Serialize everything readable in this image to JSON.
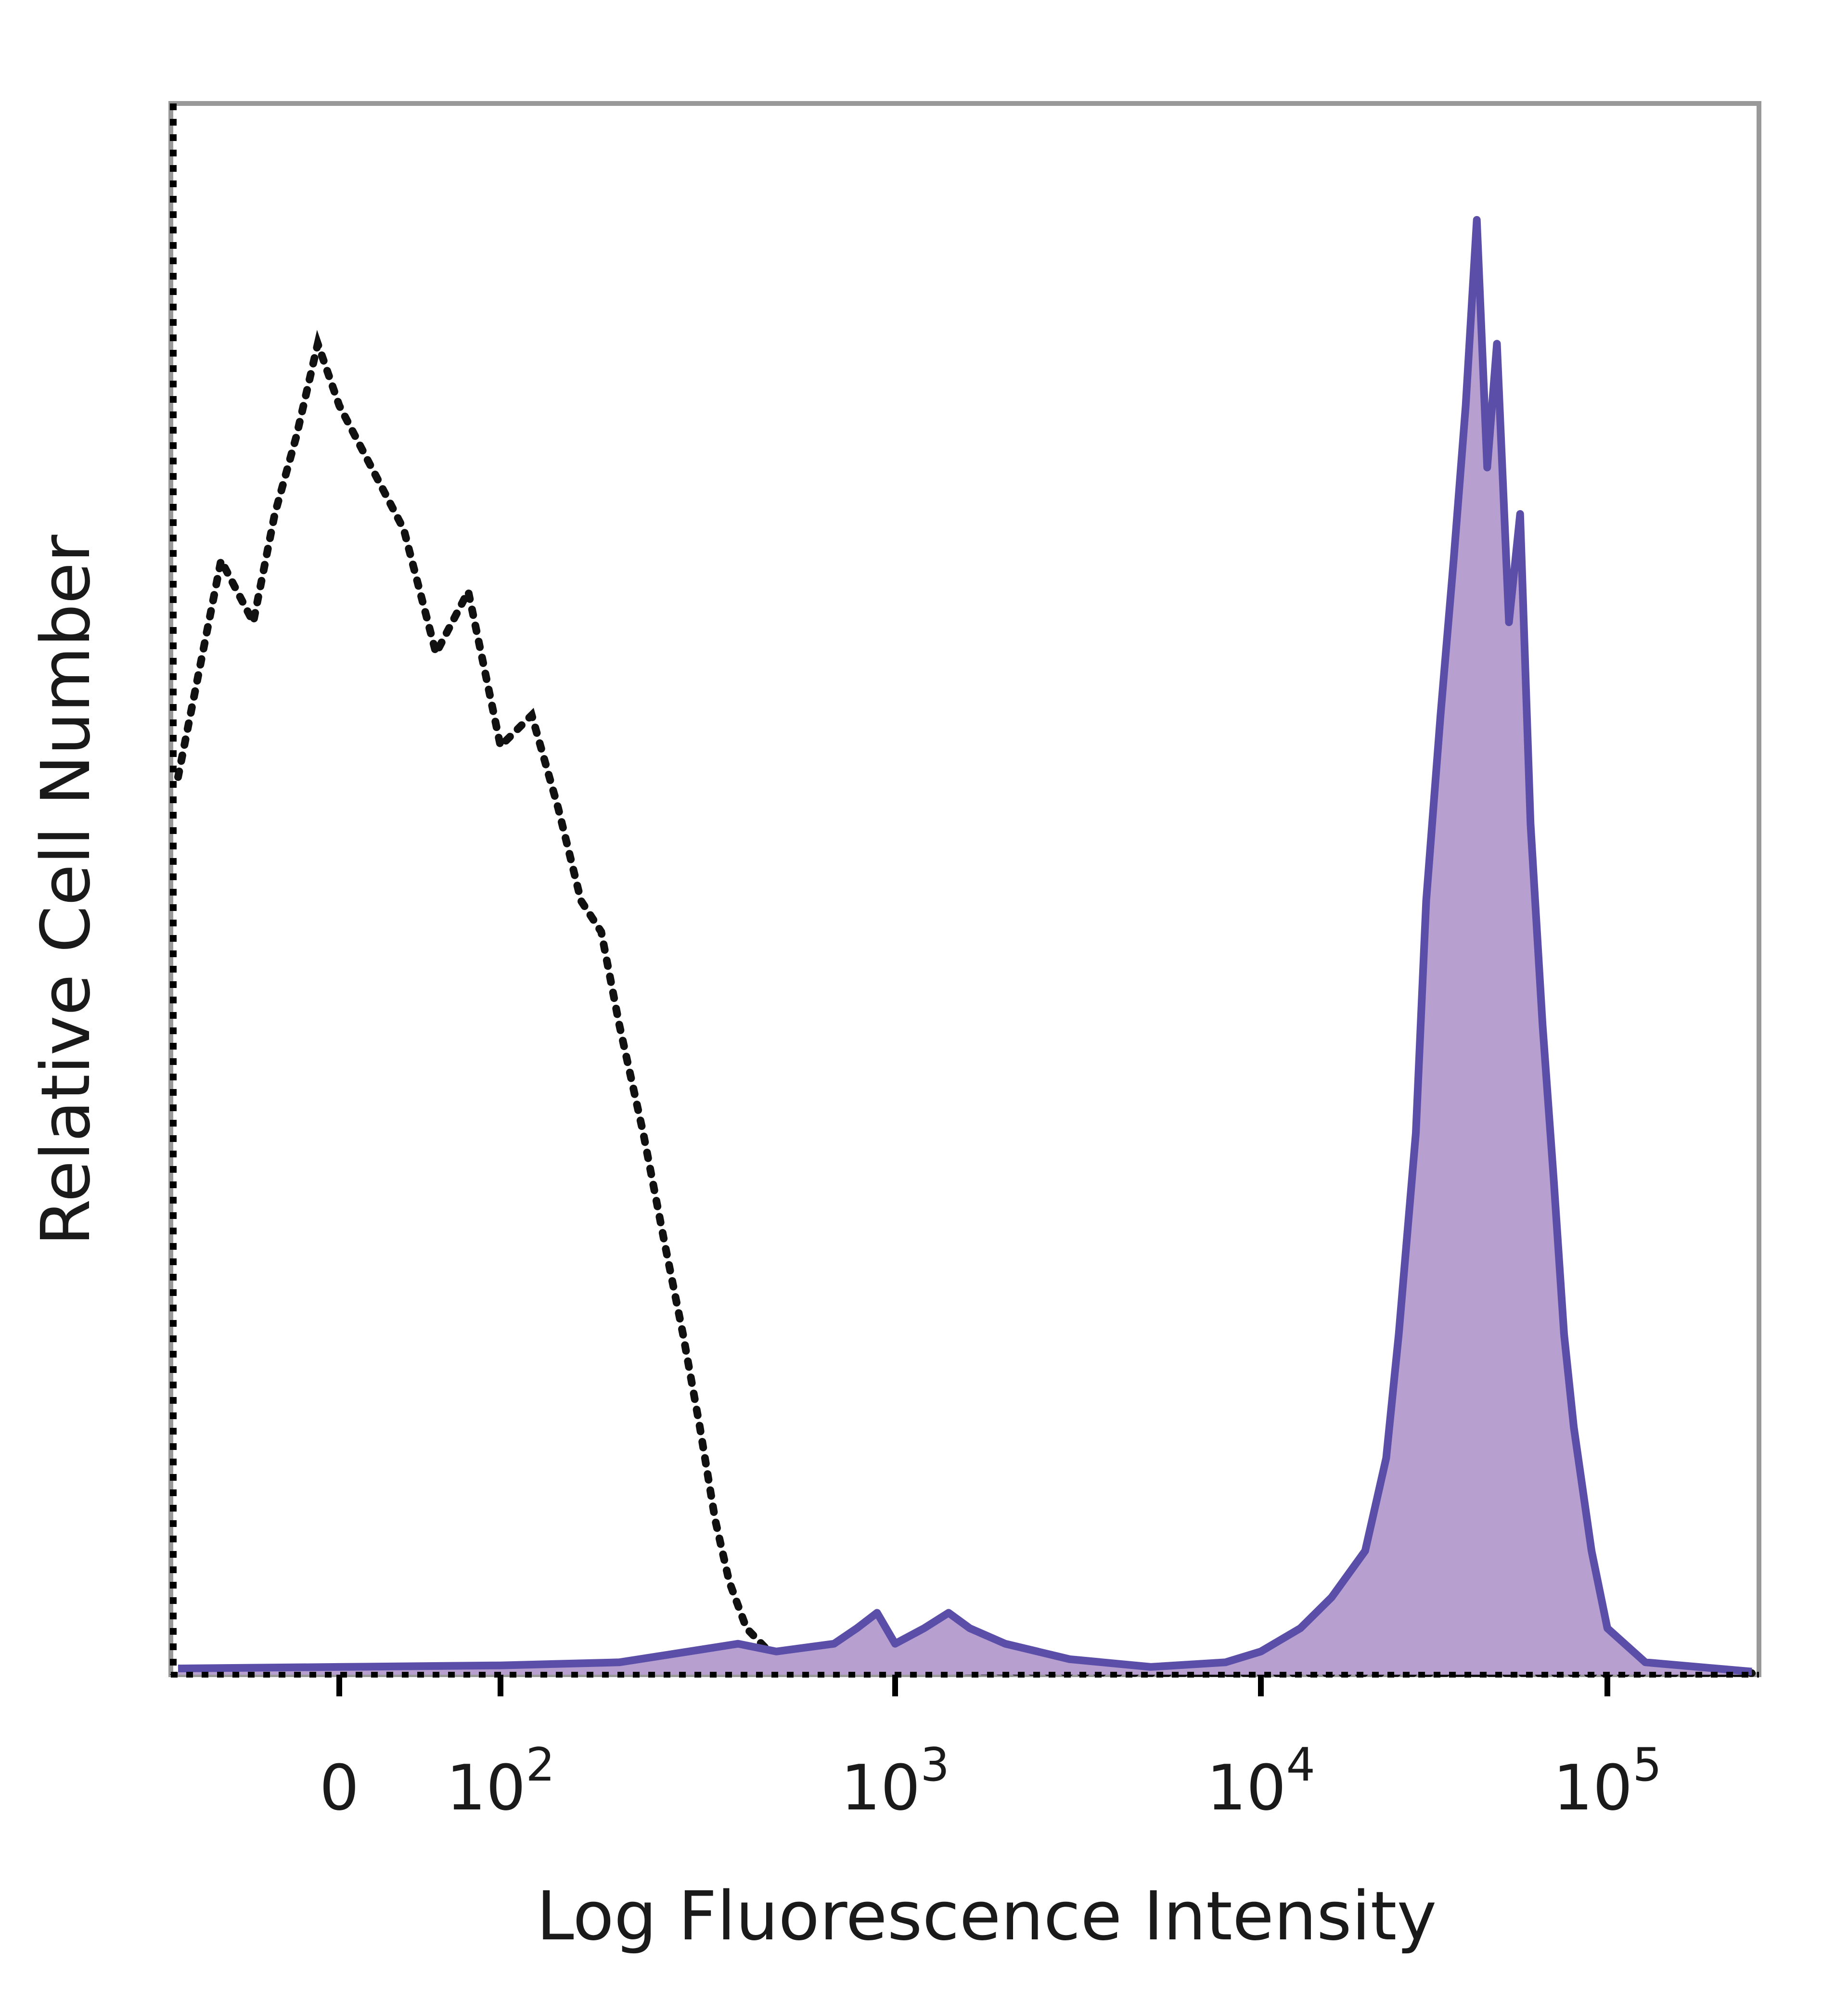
{
  "chart_data": {
    "type": "histogram",
    "xlabel": "Log Fluorescence Intensity",
    "ylabel": "Relative Cell Number",
    "xscale": "biexponential",
    "xlim": [
      -150,
      200000
    ],
    "ylim": [
      0,
      100
    ],
    "x_ticks": [
      {
        "value": 0,
        "base": "0",
        "exp": ""
      },
      {
        "value": 100,
        "base": "10",
        "exp": "2"
      },
      {
        "value": 1000,
        "base": "10",
        "exp": "3"
      },
      {
        "value": 10000,
        "base": "10",
        "exp": "4"
      },
      {
        "value": 100000,
        "base": "10",
        "exp": "5"
      }
    ],
    "grid": false,
    "legend": "none",
    "colors": {
      "stained_line": "#5b4ea8",
      "stained_fill": "#b79fcf",
      "control_line": "#111111",
      "axis": "#000000",
      "frame": "#999999"
    },
    "series": [
      {
        "style": "dotted",
        "x": [
          -150,
          -110,
          -80,
          -60,
          -40,
          -20,
          0,
          20,
          40,
          60,
          80,
          100,
          120,
          140,
          160,
          180,
          200,
          230,
          260,
          290,
          320,
          350,
          380,
          420,
          500,
          600,
          800,
          1000,
          2000,
          5000,
          10000,
          50000,
          100000,
          200000
        ],
        "y": [
          58,
          72,
          68,
          75,
          80,
          86,
          82,
          78,
          74,
          66,
          70,
          60,
          62,
          56,
          50,
          48,
          42,
          35,
          28,
          22,
          16,
          10,
          6,
          3,
          1,
          0.6,
          0.4,
          0.3,
          0.2,
          0.1,
          0.1,
          0.1,
          0.1,
          0.1
        ]
      },
      {
        "style": "solid-filled",
        "x": [
          -150,
          0,
          100,
          200,
          300,
          400,
          500,
          700,
          800,
          900,
          1000,
          1200,
          1400,
          1600,
          2000,
          3000,
          5000,
          8000,
          10000,
          13000,
          16000,
          20000,
          23000,
          25000,
          28000,
          30000,
          33000,
          36000,
          39000,
          42000,
          45000,
          48000,
          52000,
          56000,
          60000,
          65000,
          70000,
          75000,
          80000,
          90000,
          100000,
          120000,
          200000
        ],
        "y": [
          0.4,
          0.5,
          0.6,
          0.8,
          1.5,
          2,
          1.5,
          2,
          3,
          4,
          2,
          3,
          4,
          3,
          2,
          1,
          0.5,
          0.8,
          1.5,
          3,
          5,
          8,
          14,
          22,
          35,
          50,
          62,
          72,
          82,
          94,
          78,
          86,
          68,
          75,
          55,
          42,
          32,
          22,
          16,
          8,
          3,
          0.8,
          0.2
        ]
      }
    ]
  }
}
